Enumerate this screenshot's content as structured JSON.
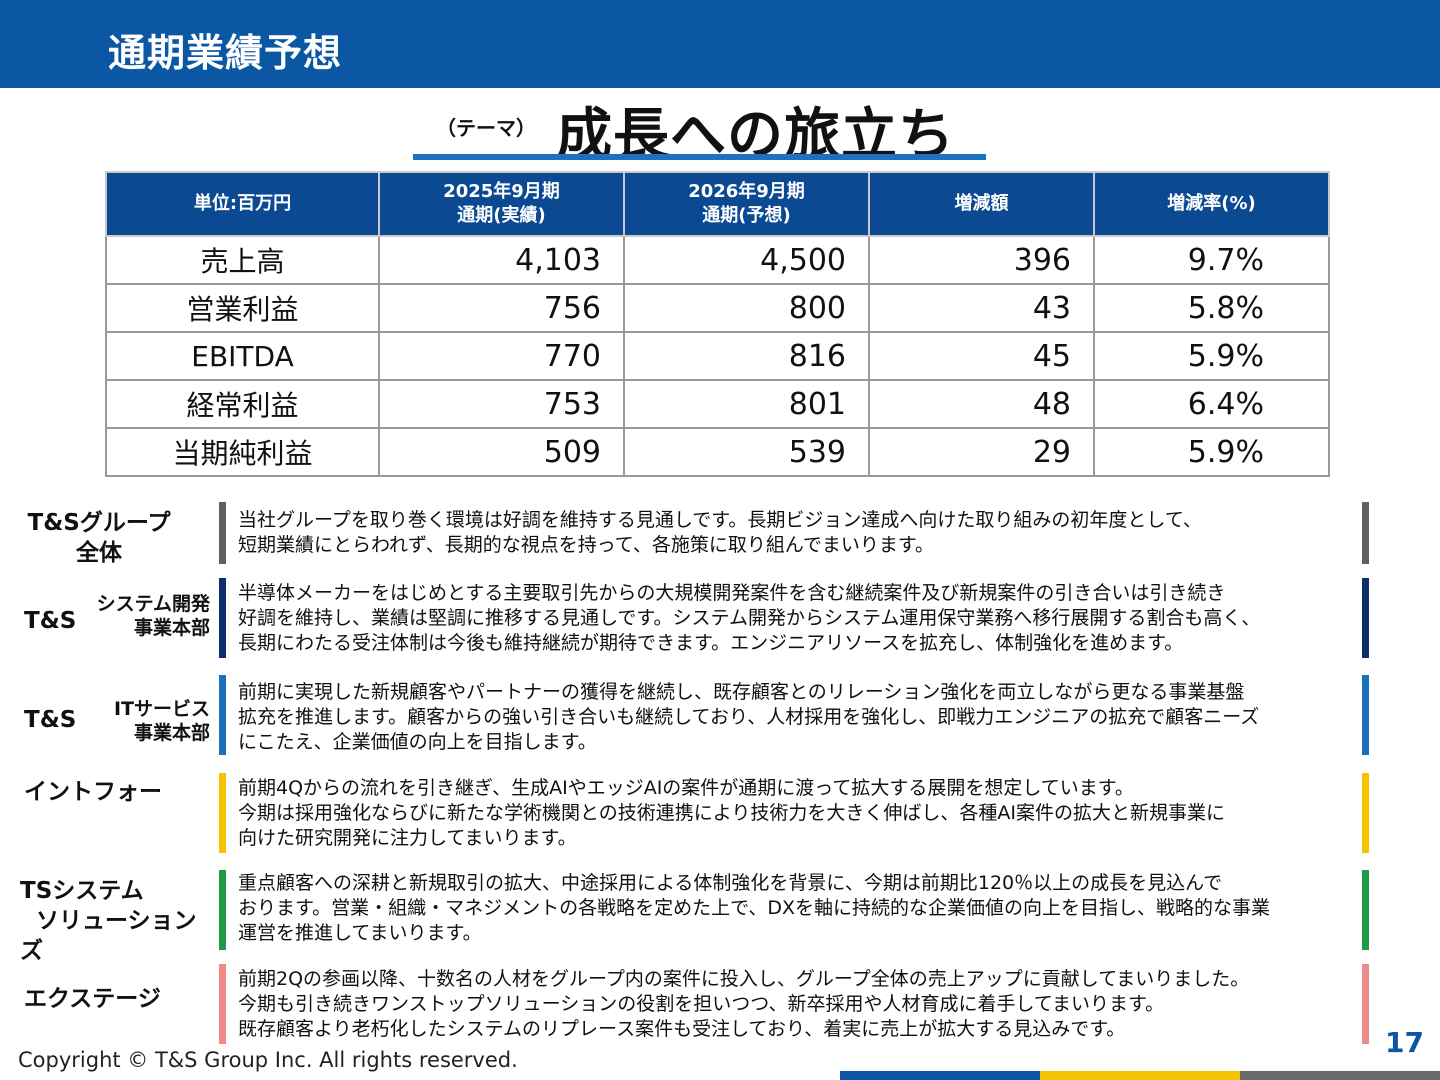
{
  "header": {
    "title": "通期業績予想"
  },
  "theme": {
    "label": "（テーマ）",
    "title": "成長への旅立ち"
  },
  "table": {
    "headers": [
      {
        "line1": "単位:百万円",
        "line2": ""
      },
      {
        "line1": "2025年9月期",
        "line2": "通期(実績)"
      },
      {
        "line1": "2026年9月期",
        "line2": "通期(予想)"
      },
      {
        "line1": "増減額",
        "line2": ""
      },
      {
        "line1": "増減率(%)",
        "line2": ""
      }
    ],
    "rows": [
      {
        "label": "売上高",
        "fy2025": "4,103",
        "fy2026": "4,500",
        "diff": "396",
        "rate": "9.7%"
      },
      {
        "label": "営業利益",
        "fy2025": "756",
        "fy2026": "800",
        "diff": "43",
        "rate": "5.8%"
      },
      {
        "label": "EBITDA",
        "fy2025": "770",
        "fy2026": "816",
        "diff": "45",
        "rate": "5.9%"
      },
      {
        "label": "経常利益",
        "fy2025": "753",
        "fy2026": "801",
        "diff": "48",
        "rate": "6.4%"
      },
      {
        "label": "当期純利益",
        "fy2025": "509",
        "fy2026": "539",
        "diff": "29",
        "rate": "5.9%"
      }
    ]
  },
  "segments": [
    {
      "name_line1": "T&Sグループ",
      "name_line2": "全体",
      "sub_line1": "",
      "sub_line2": "",
      "color": "#606060",
      "text": "当社グループを取り巻く環境は好調を維持する見通しです。長期ビジョン達成へ向けた取り組みの初年度として、\n短期業績にとらわれず、長期的な視点を持って、各施策に取り組んでまいります。"
    },
    {
      "name_line1": "T&S",
      "name_line2": "",
      "sub_line1": "システム開発",
      "sub_line2": "事業本部",
      "color": "#0d2f6b",
      "text": "半導体メーカーをはじめとする主要取引先からの大規模開発案件を含む継続案件及び新規案件の引き合いは引き続き\n好調を維持し、業績は堅調に推移する見通しです。システム開発からシステム運用保守業務へ移行展開する割合も高く、\n長期にわたる受注体制は今後も維持継続が期待できます。エンジニアリソースを拡充し、体制強化を進めます。"
    },
    {
      "name_line1": "T&S",
      "name_line2": "",
      "sub_line1": "ITサービス",
      "sub_line2": "事業本部",
      "color": "#1a6fbd",
      "text": "前期に実現した新規顧客やパートナーの獲得を継続し、既存顧客とのリレーション強化を両立しながら更なる事業基盤\n拡充を推進します。顧客からの強い引き合いも継続しており、人材採用を強化し、即戦力エンジニアの拡充で顧客ニーズ\nにこたえ、企業価値の向上を目指します。"
    },
    {
      "name_line1": "イントフォー",
      "name_line2": "",
      "sub_line1": "",
      "sub_line2": "",
      "color": "#f5c400",
      "text": "前期4Qからの流れを引き継ぎ、生成AIやエッジAIの案件が通期に渡って拡大する展開を想定しています。\n今期は採用強化ならびに新たな学術機関との技術連携により技術力を大きく伸ばし、各種AI案件の拡大と新規事業に\n向けた研究開発に注力してまいります。"
    },
    {
      "name_line1": "TSシステム",
      "name_line2": "ソリューションズ",
      "sub_line1": "",
      "sub_line2": "",
      "color": "#1f9a45",
      "text": "重点顧客への深耕と新規取引の拡大、中途採用による体制強化を背景に、今期は前期比120％以上の成長を見込んで\nおります。営業・組織・マネジメントの各戦略を定めた上で、DXを軸に持続的な企業価値の向上を目指し、戦略的な事業\n運営を推進してまいります。"
    },
    {
      "name_line1": "エクステージ",
      "name_line2": "",
      "sub_line1": "",
      "sub_line2": "",
      "color": "#f08a8a",
      "text": "前期2Qの参画以降、十数名の人材をグループ内の案件に投入し、グループ全体の売上アップに貢献してまいりました。\n今期も引き続きワンストップソリューションの役割を担いつつ、新卒採用や人材育成に着手してまいります。\n既存顧客より老朽化したシステムのリプレース案件も受注しており、着実に売上が拡大する見込みです。"
    }
  ],
  "footer": {
    "copyright": "Copyright © T&S Group Inc. All rights reserved.",
    "page_number": "17",
    "stripe_colors": [
      "#0b57a4",
      "#f5c400",
      "#6a6a6a"
    ]
  }
}
